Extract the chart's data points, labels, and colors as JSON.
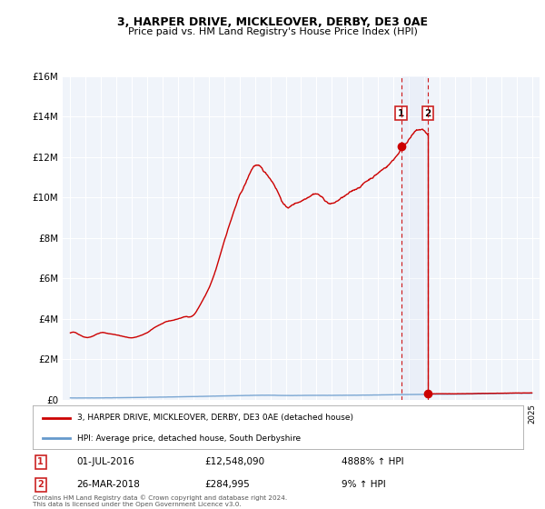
{
  "title": "3, HARPER DRIVE, MICKLEOVER, DERBY, DE3 0AE",
  "subtitle": "Price paid vs. HM Land Registry's House Price Index (HPI)",
  "ylabel_ticks": [
    "£0",
    "£2M",
    "£4M",
    "£6M",
    "£8M",
    "£10M",
    "£12M",
    "£14M",
    "£16M"
  ],
  "ylim": [
    0,
    16000000
  ],
  "xlim_start": 1994.5,
  "xlim_end": 2025.5,
  "hpi_color": "#6699cc",
  "price_color": "#cc0000",
  "legend_label_red": "3, HARPER DRIVE, MICKLEOVER, DERBY, DE3 0AE (detached house)",
  "legend_label_blue": "HPI: Average price, detached house, South Derbyshire",
  "sale1_date": "01-JUL-2016",
  "sale1_price": "£12,548,090",
  "sale1_hpi": "4888% ↑ HPI",
  "sale1_year": 2016.5,
  "sale1_value": 12548090,
  "sale2_date": "26-MAR-2018",
  "sale2_price": "£284,995",
  "sale2_hpi": "9% ↑ HPI",
  "sale2_year": 2018.25,
  "sale2_value": 284995,
  "footer": "Contains HM Land Registry data © Crown copyright and database right 2024.\nThis data is licensed under the Open Government Licence v3.0."
}
